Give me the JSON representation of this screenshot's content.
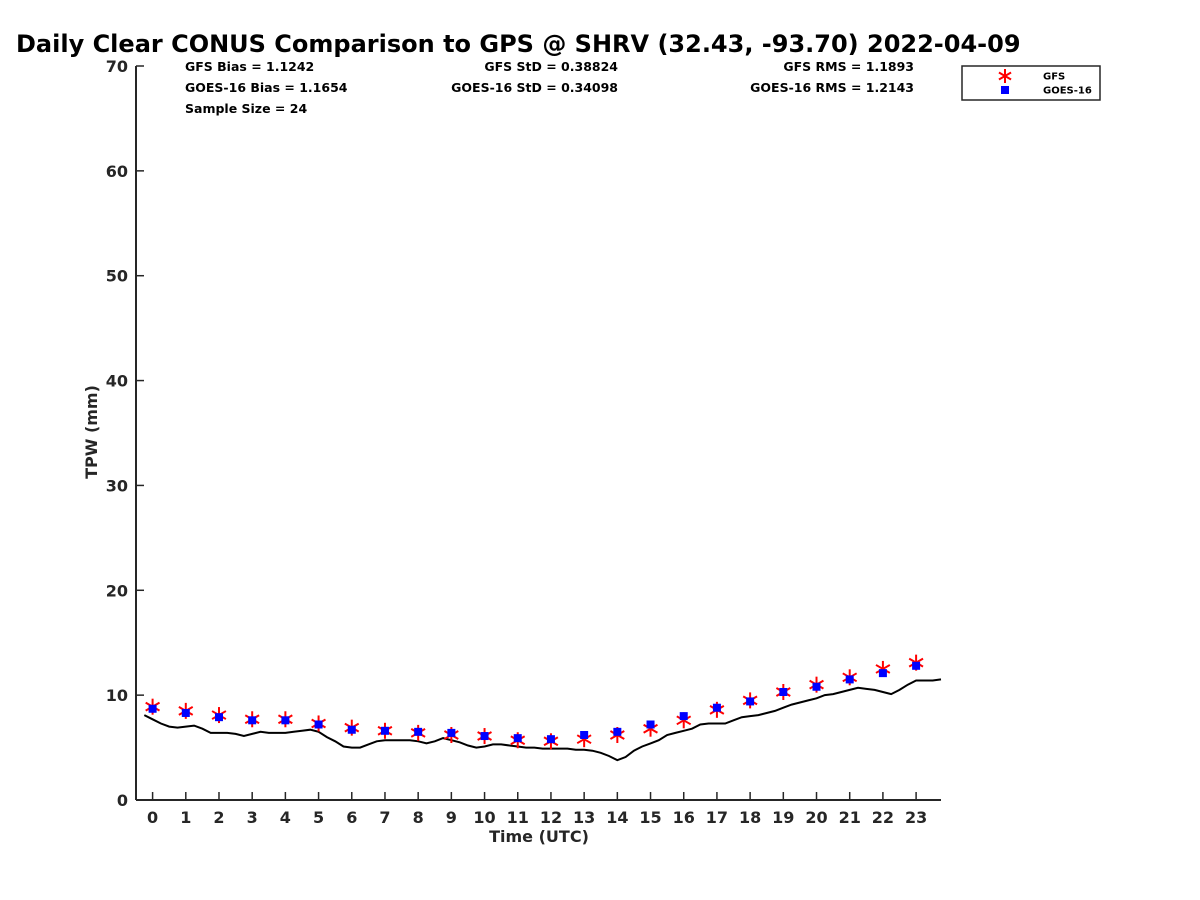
{
  "chart_data": {
    "type": "line",
    "title": "Daily Clear CONUS Comparison to GPS @ SHRV (32.43, -93.70) 2022-04-09",
    "xlabel": "Time (UTC)",
    "ylabel": "TPW (mm)",
    "xlim": [
      -0.5,
      23.75
    ],
    "ylim": [
      0,
      70
    ],
    "x_ticks": [
      "0",
      "1",
      "2",
      "3",
      "4",
      "5",
      "6",
      "7",
      "8",
      "9",
      "10",
      "11",
      "12",
      "13",
      "14",
      "15",
      "16",
      "17",
      "18",
      "19",
      "20",
      "21",
      "22",
      "23"
    ],
    "y_ticks": [
      "0",
      "10",
      "20",
      "30",
      "40",
      "50",
      "60",
      "70"
    ],
    "grid": false,
    "legend_position": "top-right",
    "stats": [
      {
        "name": "gfs-bias",
        "text": "GFS Bias = 1.1242"
      },
      {
        "name": "gfs-std",
        "text": "GFS StD = 0.38824"
      },
      {
        "name": "gfs-rms",
        "text": "GFS RMS = 1.1893"
      },
      {
        "name": "goes-bias",
        "text": "GOES-16 Bias = 1.1654"
      },
      {
        "name": "goes-std",
        "text": "GOES-16 StD = 0.34098"
      },
      {
        "name": "goes-rms",
        "text": "GOES-16 RMS = 1.2143"
      },
      {
        "name": "sample-size",
        "text": "Sample Size = 24"
      }
    ],
    "series": [
      {
        "name": "GFS",
        "marker": "asterisk",
        "color": "#ff0000",
        "x": [
          0,
          1,
          2,
          3,
          4,
          5,
          6,
          7,
          8,
          9,
          10,
          11,
          12,
          13,
          14,
          15,
          16,
          17,
          18,
          19,
          20,
          21,
          22,
          23
        ],
        "y": [
          8.9,
          8.5,
          8.1,
          7.7,
          7.7,
          7.3,
          6.9,
          6.6,
          6.4,
          6.2,
          6.1,
          5.7,
          5.6,
          5.8,
          6.2,
          6.8,
          7.6,
          8.6,
          9.5,
          10.3,
          11.0,
          11.7,
          12.5,
          13.1
        ]
      },
      {
        "name": "GOES-16",
        "marker": "square",
        "color": "#0000ff",
        "x": [
          0,
          1,
          2,
          3,
          4,
          5,
          6,
          7,
          8,
          9,
          10,
          11,
          12,
          13,
          14,
          15,
          16,
          17,
          18,
          19,
          20,
          21,
          22,
          23
        ],
        "y": [
          8.7,
          8.3,
          7.9,
          7.6,
          7.6,
          7.2,
          6.7,
          6.6,
          6.5,
          6.4,
          6.1,
          5.9,
          5.8,
          6.2,
          6.5,
          7.2,
          8.0,
          8.8,
          9.4,
          10.3,
          10.8,
          11.5,
          12.1,
          12.8
        ]
      },
      {
        "name": "GPS",
        "marker": "none",
        "color": "#000000",
        "x": [
          -0.25,
          0,
          0.25,
          0.5,
          0.75,
          1,
          1.25,
          1.5,
          1.75,
          2,
          2.25,
          2.5,
          2.75,
          3,
          3.25,
          3.5,
          3.75,
          4,
          4.25,
          4.5,
          4.75,
          5,
          5.25,
          5.5,
          5.75,
          6,
          6.25,
          6.5,
          6.75,
          7,
          7.25,
          7.5,
          7.75,
          8,
          8.25,
          8.5,
          8.75,
          9,
          9.25,
          9.5,
          9.75,
          10,
          10.25,
          10.5,
          10.75,
          11,
          11.25,
          11.5,
          11.75,
          12,
          12.25,
          12.5,
          12.75,
          13,
          13.25,
          13.5,
          13.75,
          14,
          14.25,
          14.5,
          14.75,
          15,
          15.25,
          15.5,
          15.75,
          16,
          16.25,
          16.5,
          16.75,
          17,
          17.25,
          17.5,
          17.75,
          18,
          18.25,
          18.5,
          18.75,
          19,
          19.25,
          19.5,
          19.75,
          20,
          20.25,
          20.5,
          20.75,
          21,
          21.25,
          21.5,
          21.75,
          22,
          22.25,
          22.5,
          22.75,
          23,
          23.25,
          23.5,
          23.75
        ],
        "y": [
          8.1,
          7.7,
          7.3,
          7.0,
          6.9,
          7.0,
          7.1,
          6.8,
          6.4,
          6.4,
          6.4,
          6.3,
          6.1,
          6.3,
          6.5,
          6.4,
          6.4,
          6.4,
          6.5,
          6.6,
          6.7,
          6.5,
          6.0,
          5.6,
          5.1,
          5.0,
          5.0,
          5.3,
          5.6,
          5.7,
          5.7,
          5.7,
          5.7,
          5.6,
          5.4,
          5.6,
          5.9,
          5.7,
          5.5,
          5.2,
          5.0,
          5.1,
          5.3,
          5.3,
          5.2,
          5.1,
          5.0,
          5.0,
          4.9,
          4.9,
          4.9,
          4.9,
          4.8,
          4.8,
          4.7,
          4.5,
          4.2,
          3.8,
          4.1,
          4.7,
          5.1,
          5.4,
          5.7,
          6.2,
          6.4,
          6.6,
          6.8,
          7.2,
          7.3,
          7.3,
          7.3,
          7.6,
          7.9,
          8.0,
          8.1,
          8.3,
          8.5,
          8.8,
          9.1,
          9.3,
          9.5,
          9.7,
          10.0,
          10.1,
          10.3,
          10.5,
          10.7,
          10.6,
          10.5,
          10.3,
          10.1,
          10.5,
          11.0,
          11.4,
          11.4,
          11.4,
          11.5
        ]
      }
    ]
  }
}
